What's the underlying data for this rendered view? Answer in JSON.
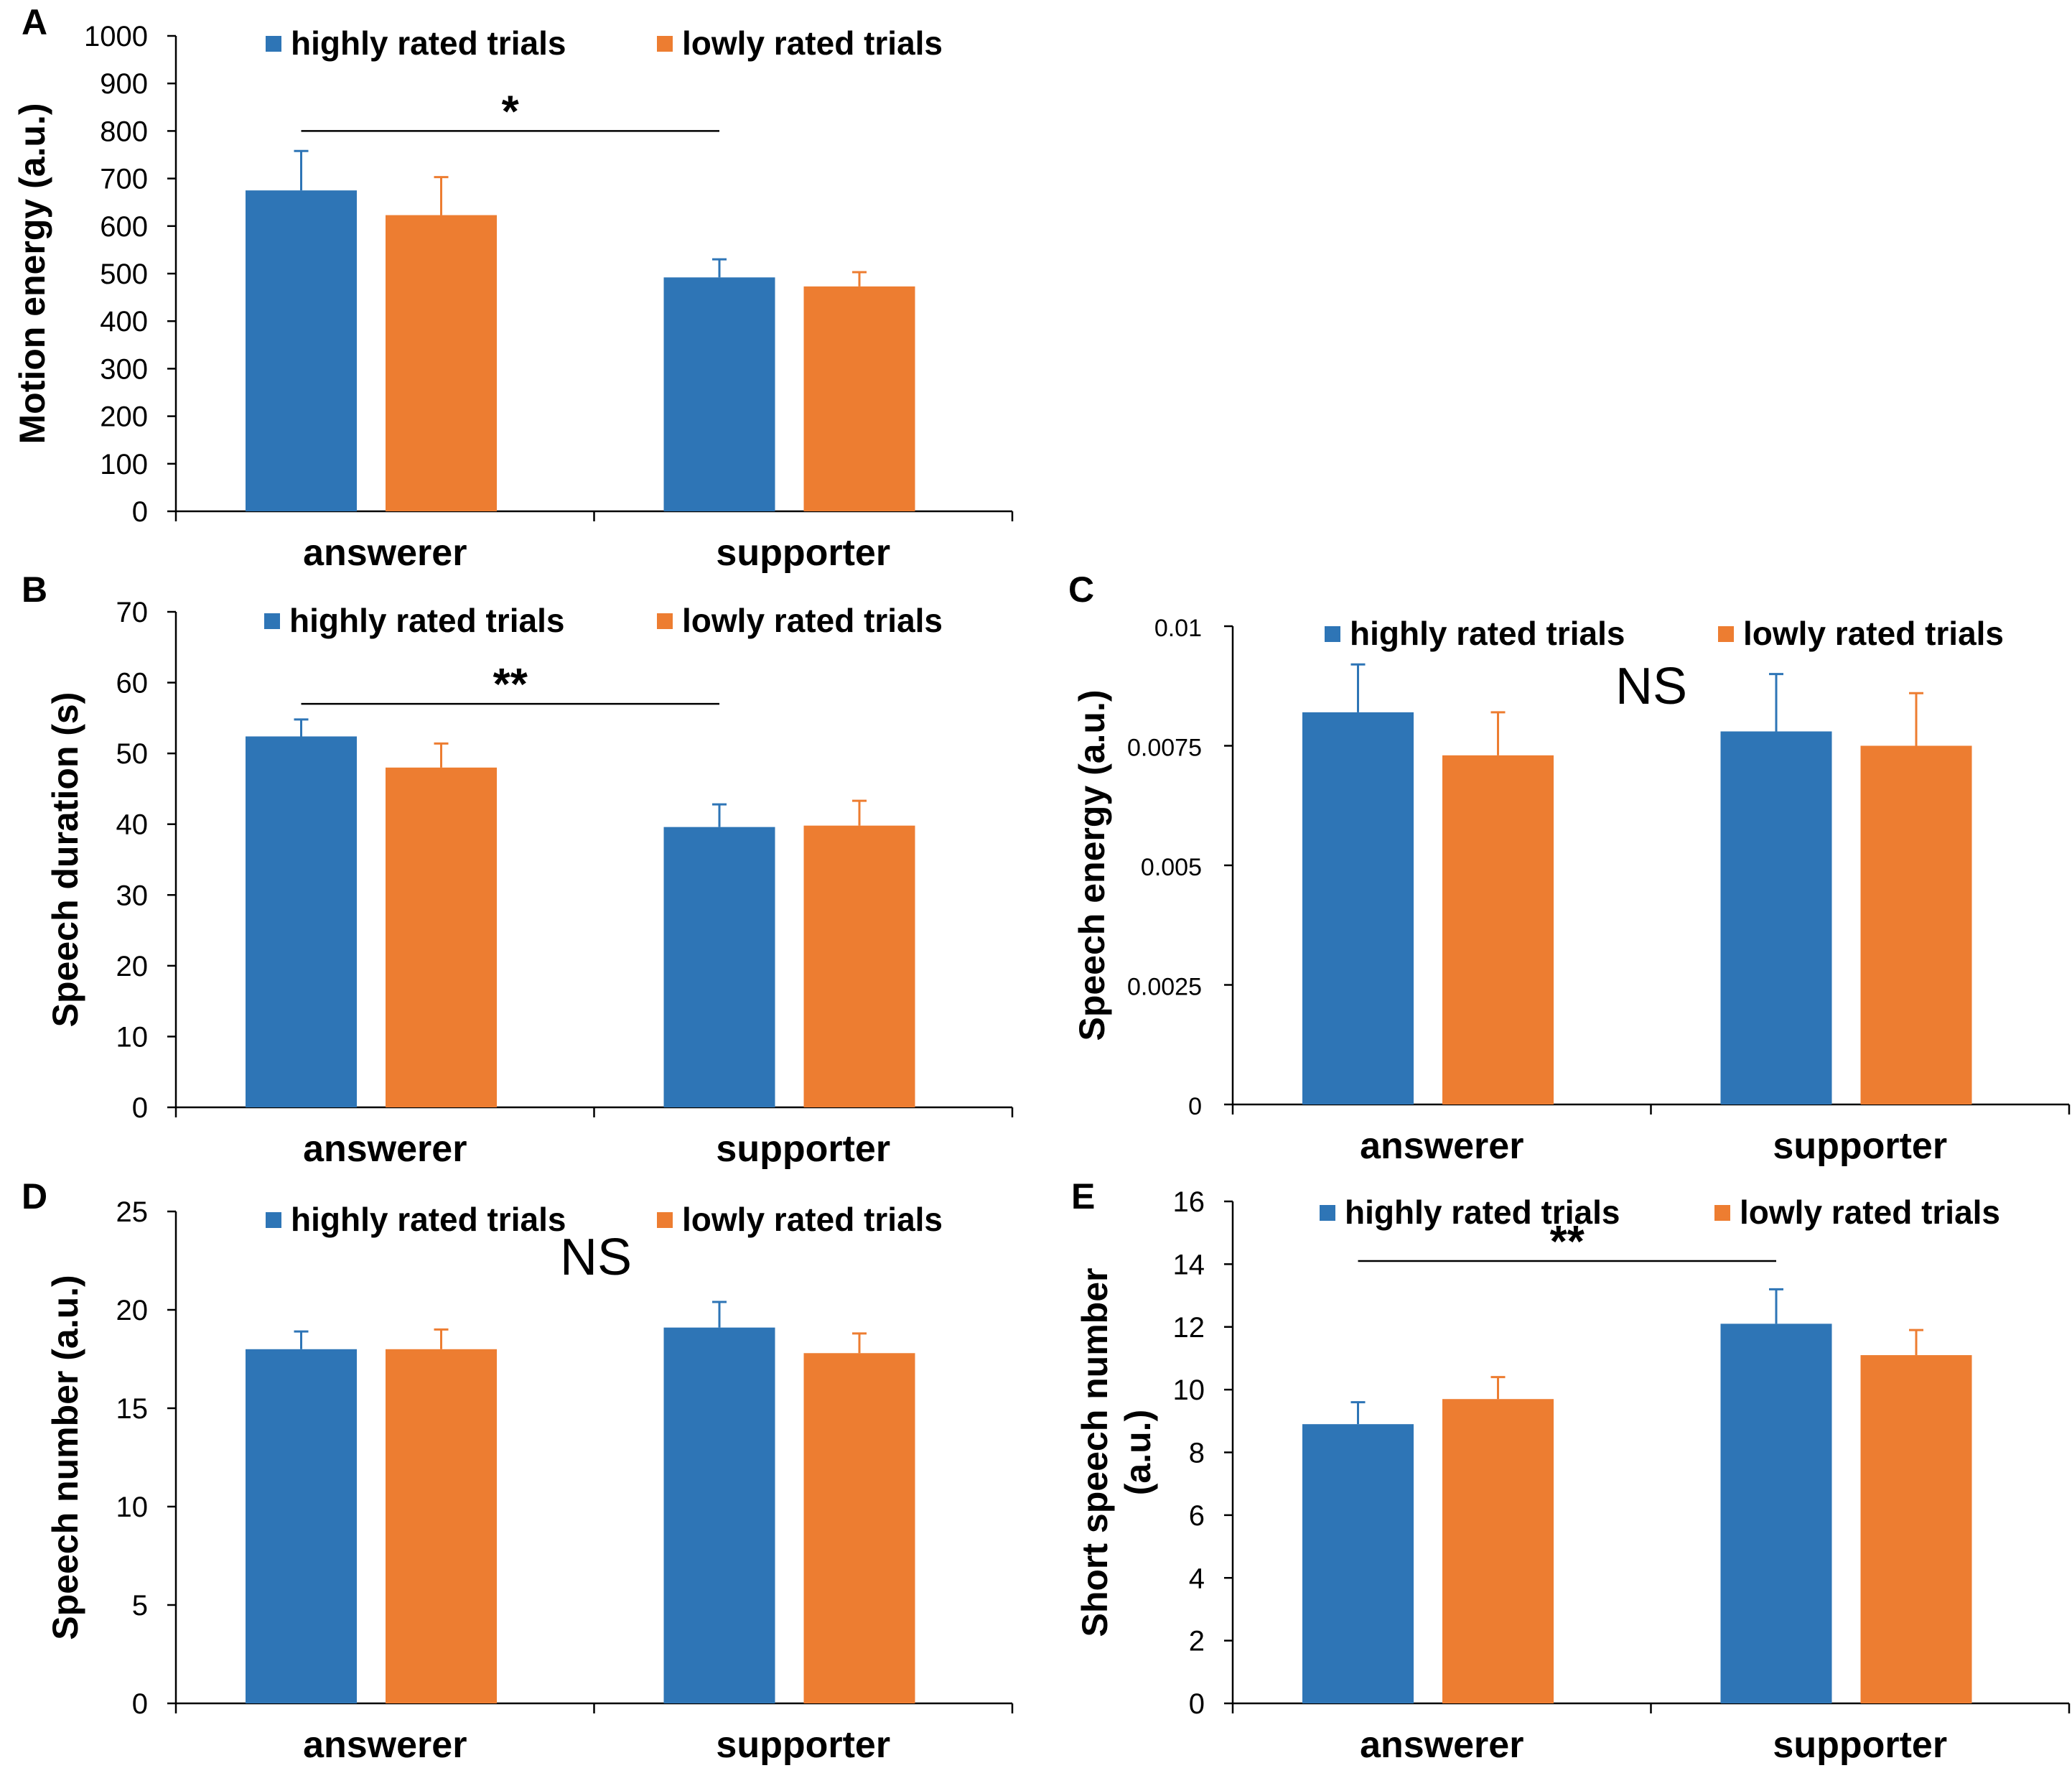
{
  "legend": {
    "highly": "highly rated trials",
    "lowly": "lowly rated trials"
  },
  "colors": {
    "highly": "#2E75B6",
    "lowly": "#ED7D31"
  },
  "chart_data": [
    {
      "panel": "A",
      "type": "bar",
      "categories": [
        "answerer",
        "supporter"
      ],
      "series": [
        {
          "name": "highly rated trials",
          "values": [
            675,
            492
          ],
          "errors": [
            83,
            38
          ]
        },
        {
          "name": "lowly rated trials",
          "values": [
            623,
            473
          ],
          "errors": [
            80,
            30
          ]
        }
      ],
      "ylabel": "Motion energy (a.u.)",
      "ylim": [
        0,
        1000
      ],
      "yticks": [
        0,
        100,
        200,
        300,
        400,
        500,
        600,
        700,
        800,
        900,
        1000
      ],
      "ytick_labels": [
        "0",
        "100",
        "200",
        "300",
        "400",
        "500",
        "600",
        "700",
        "800",
        "900",
        "1000"
      ],
      "significance": {
        "label": "*",
        "from": "answerer",
        "to": "supporter",
        "y": 800
      }
    },
    {
      "panel": "B",
      "type": "bar",
      "categories": [
        "answerer",
        "supporter"
      ],
      "series": [
        {
          "name": "highly rated trials",
          "values": [
            52.4,
            39.6
          ],
          "errors": [
            2.4,
            3.2
          ]
        },
        {
          "name": "lowly rated trials",
          "values": [
            48.0,
            39.8
          ],
          "errors": [
            3.4,
            3.5
          ]
        }
      ],
      "ylabel": "Speech duration (s)",
      "ylim": [
        0,
        70
      ],
      "yticks": [
        0,
        10,
        20,
        30,
        40,
        50,
        60,
        70
      ],
      "ytick_labels": [
        "0",
        "10",
        "20",
        "30",
        "40",
        "50",
        "60",
        "70"
      ],
      "significance": {
        "label": "**",
        "from": "answerer",
        "to": "supporter",
        "y": 57
      }
    },
    {
      "panel": "C",
      "type": "bar",
      "categories": [
        "answerer",
        "supporter"
      ],
      "series": [
        {
          "name": "highly rated trials",
          "values": [
            0.0082,
            0.0078
          ],
          "errors": [
            0.001,
            0.0012
          ]
        },
        {
          "name": "lowly rated trials",
          "values": [
            0.0073,
            0.0075
          ],
          "errors": [
            0.0009,
            0.0011
          ]
        }
      ],
      "ylabel": "Speech energy (a.u.)",
      "ylim": [
        0,
        0.01
      ],
      "yticks": [
        0,
        0.0025,
        0.005,
        0.0075,
        0.01
      ],
      "ytick_labels": [
        "0",
        "0.0025",
        "0.005",
        "0.0075",
        "0.01"
      ],
      "annotation": "NS"
    },
    {
      "panel": "D",
      "type": "bar",
      "categories": [
        "answerer",
        "supporter"
      ],
      "series": [
        {
          "name": "highly rated trials",
          "values": [
            18.0,
            19.1
          ],
          "errors": [
            0.9,
            1.3
          ]
        },
        {
          "name": "lowly rated trials",
          "values": [
            18.0,
            17.8
          ],
          "errors": [
            1.0,
            1.0
          ]
        }
      ],
      "ylabel": "Speech number (a.u.)",
      "ylim": [
        0,
        25
      ],
      "yticks": [
        0,
        5,
        10,
        15,
        20,
        25
      ],
      "ytick_labels": [
        "0",
        "5",
        "10",
        "15",
        "20",
        "25"
      ],
      "annotation": "NS"
    },
    {
      "panel": "E",
      "type": "bar",
      "categories": [
        "answerer",
        "supporter"
      ],
      "series": [
        {
          "name": "highly rated trials",
          "values": [
            8.9,
            12.1
          ],
          "errors": [
            0.7,
            1.1
          ]
        },
        {
          "name": "lowly rated trials",
          "values": [
            9.7,
            11.1
          ],
          "errors": [
            0.7,
            0.8
          ]
        }
      ],
      "ylabel": [
        "Short speech number",
        "(a.u.)"
      ],
      "ylim": [
        0,
        16
      ],
      "yticks": [
        0,
        2,
        4,
        6,
        8,
        10,
        12,
        14,
        16
      ],
      "ytick_labels": [
        "0",
        "2",
        "4",
        "6",
        "8",
        "10",
        "12",
        "14",
        "16"
      ],
      "significance": {
        "label": "**",
        "from": "answerer",
        "to": "supporter",
        "y": 14.1
      }
    }
  ]
}
